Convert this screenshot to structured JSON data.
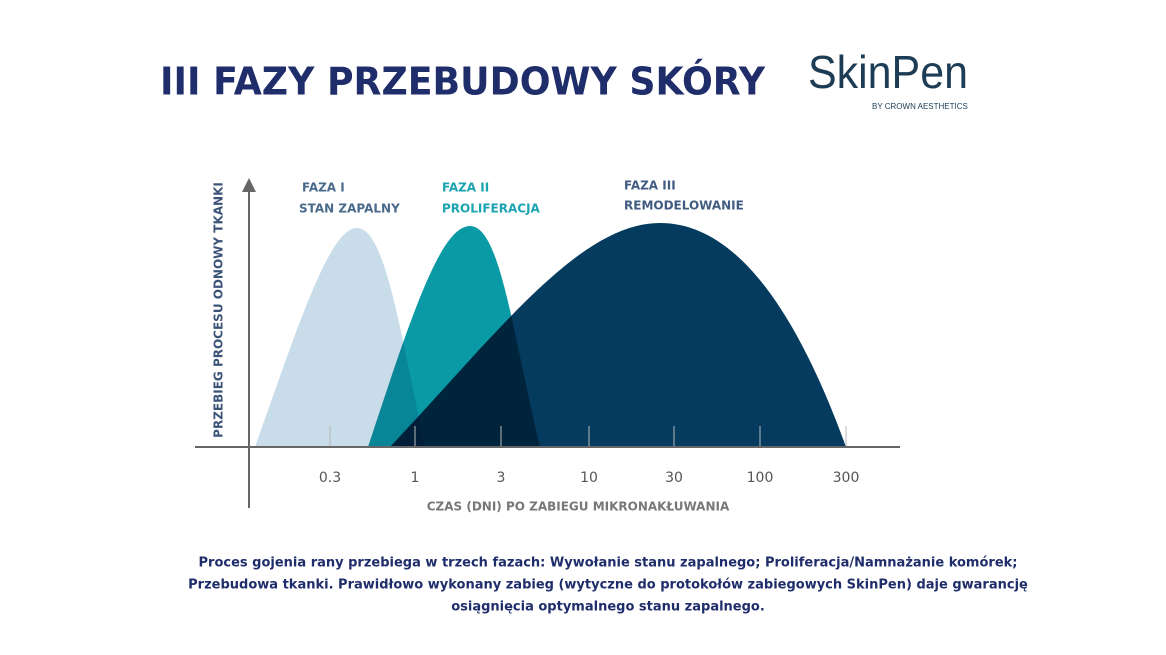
{
  "header": {
    "title": "III FAZY PRZEBUDOWY SKÓRY",
    "logo": "SkinPen",
    "logo_tagline": "BY CROWN AESTHETICS"
  },
  "diagram": {
    "y_axis_label": "PRZEBIEG PROCESU ODNOWY TKANKI",
    "x_axis_label": "CZAS (DNI) PO ZABIEGU MIKRONAKŁUWANIA",
    "x_tick_labels": [
      "0.3",
      "1",
      "3",
      "10",
      "30",
      "100",
      "300"
    ],
    "phases": [
      {
        "name": "FAZA I",
        "label": "STAN ZAPALNY"
      },
      {
        "name": "FAZA II",
        "label": "PROLIFERACJA"
      },
      {
        "name": "FAZA III",
        "label": "REMODELOWANIE"
      }
    ]
  },
  "caption": [
    "Proces gojenia rany przebiega w trzech fazach: Wywołanie stanu zapalnego; Proliferacja/Namnażanie komórek;",
    "Przebudowa tkanki. Prawidłowo wykonany zabieg (wytyczne do protokołów zabiegowych SkinPen) daje gwarancję",
    "osiągnięcia optymalnego stanu zapalnego."
  ]
}
